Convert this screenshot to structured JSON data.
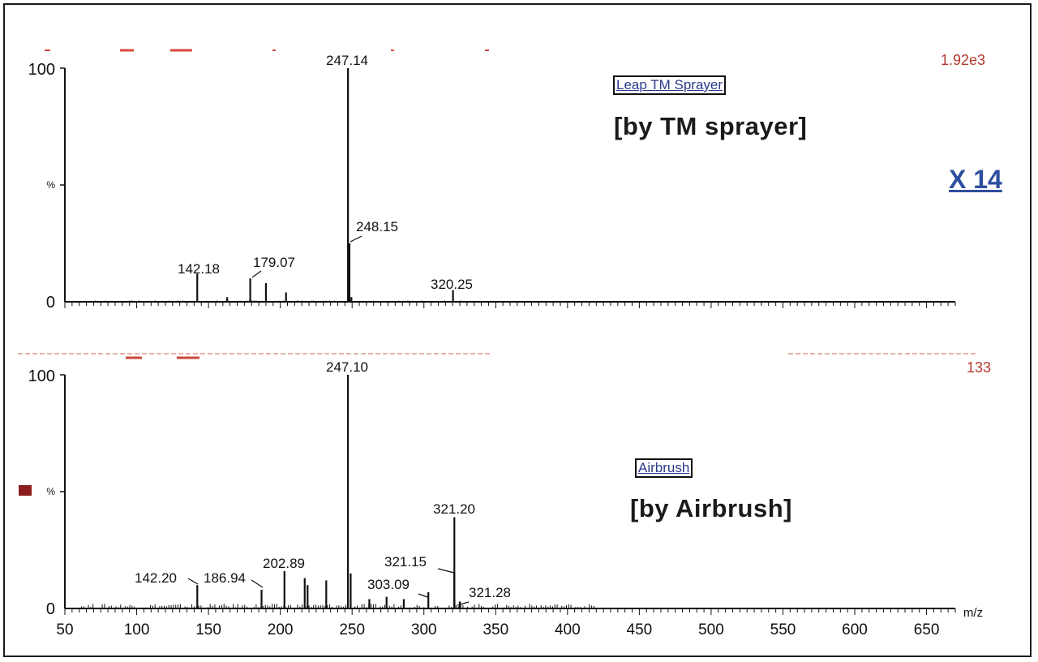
{
  "chart_data": [
    {
      "type": "line",
      "panel": "top",
      "label": "Leap TM Sprayer",
      "title": "[by TM sprayer]",
      "scale": "1.92e3",
      "multiplier": "X 14",
      "xlabel": "m/z",
      "xlim": [
        50,
        670
      ],
      "ylim": [
        0,
        100
      ],
      "y_ticks": [
        "100",
        "%",
        "0"
      ],
      "peaks": [
        {
          "x": 142.18,
          "y": 12,
          "label": "142.18"
        },
        {
          "x": 163.0,
          "y": 2,
          "label": ""
        },
        {
          "x": 179.07,
          "y": 10,
          "label": "179.07"
        },
        {
          "x": 190.0,
          "y": 8,
          "label": ""
        },
        {
          "x": 204.0,
          "y": 4,
          "label": ""
        },
        {
          "x": 247.14,
          "y": 100,
          "label": "247.14"
        },
        {
          "x": 248.15,
          "y": 25,
          "label": "248.15"
        },
        {
          "x": 249.5,
          "y": 2,
          "label": ""
        },
        {
          "x": 320.25,
          "y": 5,
          "label": "320.25"
        }
      ]
    },
    {
      "type": "line",
      "panel": "bottom",
      "label": "Airbrush",
      "title": "[by Airbrush]",
      "scale": "133",
      "multiplier": "",
      "xlabel": "m/z",
      "xlim": [
        50,
        670
      ],
      "ylim": [
        0,
        100
      ],
      "x_ticks": [
        50,
        100,
        150,
        200,
        250,
        300,
        350,
        400,
        450,
        500,
        550,
        600,
        650
      ],
      "y_ticks": [
        "100",
        "%",
        "0"
      ],
      "peaks": [
        {
          "x": 142.2,
          "y": 10,
          "label": "142.20"
        },
        {
          "x": 186.94,
          "y": 8,
          "label": "186.94"
        },
        {
          "x": 202.89,
          "y": 16,
          "label": "202.89"
        },
        {
          "x": 217.0,
          "y": 13,
          "label": ""
        },
        {
          "x": 219.0,
          "y": 10,
          "label": ""
        },
        {
          "x": 232.0,
          "y": 12,
          "label": ""
        },
        {
          "x": 247.1,
          "y": 100,
          "label": "247.10"
        },
        {
          "x": 249.0,
          "y": 15,
          "label": ""
        },
        {
          "x": 262.0,
          "y": 4,
          "label": ""
        },
        {
          "x": 274.0,
          "y": 5,
          "label": ""
        },
        {
          "x": 286.0,
          "y": 4,
          "label": ""
        },
        {
          "x": 303.09,
          "y": 7,
          "label": "303.09"
        },
        {
          "x": 321.15,
          "y": 15,
          "label": "321.15"
        },
        {
          "x": 321.2,
          "y": 39,
          "label": "321.20"
        },
        {
          "x": 321.28,
          "y": 4,
          "label": "321.28"
        },
        {
          "x": 325.0,
          "y": 3,
          "label": ""
        }
      ]
    }
  ]
}
